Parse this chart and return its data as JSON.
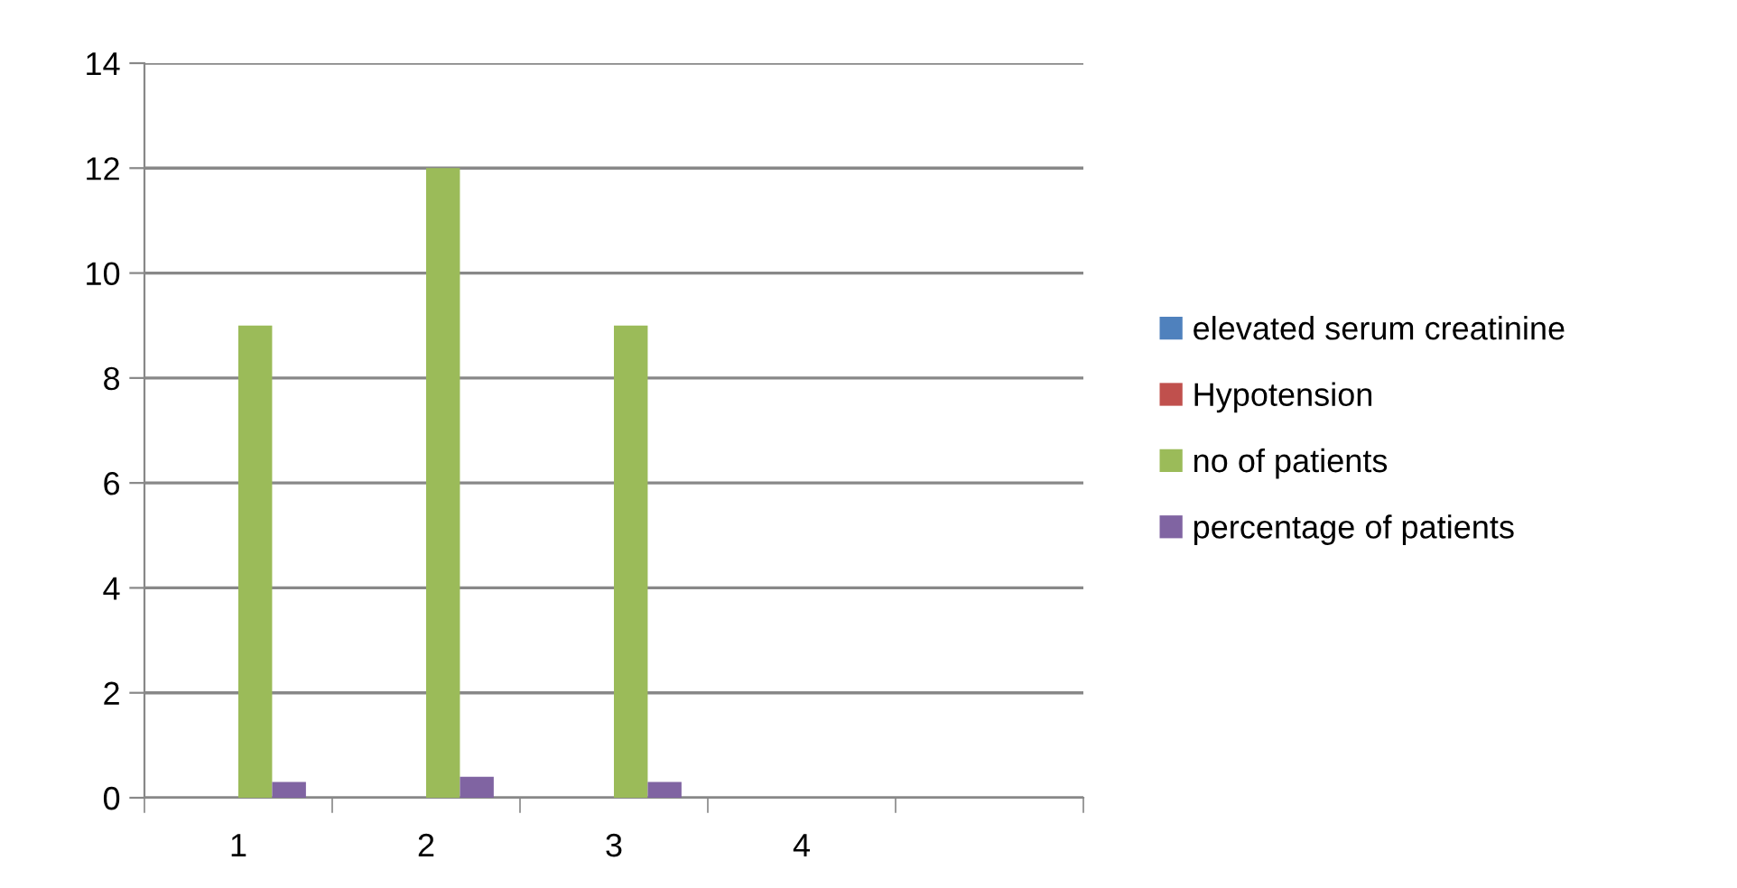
{
  "chart_data": {
    "type": "bar",
    "categories": [
      "1",
      "2",
      "3",
      "4",
      null
    ],
    "series": [
      {
        "name": "elevated serum creatinine",
        "color": "#4f81bd",
        "values": [
          null,
          null,
          null,
          null,
          null
        ]
      },
      {
        "name": "Hypotension",
        "color": "#c0504d",
        "values": [
          null,
          null,
          null,
          null,
          null
        ]
      },
      {
        "name": "no of patients",
        "color": "#9bbb59",
        "values": [
          9,
          12,
          9,
          null,
          null
        ]
      },
      {
        "name": "percentage of patients",
        "color": "#8064a2",
        "values": [
          0.3,
          0.4,
          0.3,
          null,
          null
        ]
      }
    ],
    "ylim": [
      0,
      14
    ],
    "yticks": [
      0,
      2,
      4,
      6,
      8,
      10,
      12,
      14
    ],
    "grid": "y",
    "legend": "right"
  }
}
